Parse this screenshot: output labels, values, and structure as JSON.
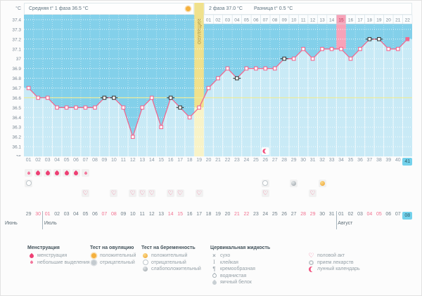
{
  "header": {
    "phase1": "Средняя t° 1 фаза 36.5 °C",
    "phase2": "2 фаза 37.0 °C",
    "difference": "Разница t° 0.5 °C",
    "ovulation": "ОВУЛЯЦИЯ"
  },
  "colors": {
    "chart_bg": "#83d0ea",
    "area_fill": "#c9eaf6",
    "line": "#f2688f",
    "marker_dark": "#3c3c3c",
    "coverline": "#ecec9e",
    "band_top": "#f0e18c",
    "band_bottom": "#f8f3c8",
    "band_text": "#9d8836",
    "highlight_pink": "#f8a2b8",
    "highlight_pink_text": "#b23a55",
    "cell_text": "#7c8b95",
    "axis_text": "#7a8894",
    "today_blue": "#74d2ec"
  },
  "chart_data": {
    "type": "line",
    "title": "Basal body temperature cycle chart",
    "ylabel": "°C",
    "ylim": [
      36.0,
      37.45
    ],
    "ytick_labels": [
      "37.4",
      "37.3",
      "37.2",
      "37.1",
      "37",
      "36.9",
      "36.8",
      "36.7",
      "36.6",
      "36.5",
      "36.4",
      "36.3",
      "36.2",
      "36.1",
      "36"
    ],
    "coverline": 36.6,
    "cycle_length": 41,
    "ovulation_cycle_day": 19,
    "phase2_days": 22,
    "phase2_highlight_day": 15,
    "today_cycle_day": 41,
    "temperatures": [
      36.7,
      36.6,
      36.6,
      36.5,
      36.5,
      36.5,
      36.5,
      36.5,
      36.6,
      36.6,
      36.5,
      36.2,
      36.5,
      36.6,
      36.3,
      36.6,
      36.5,
      36.4,
      36.5,
      36.7,
      36.8,
      36.9,
      36.8,
      36.9,
      36.9,
      36.9,
      36.9,
      37.0,
      37.0,
      37.1,
      37.0,
      37.1,
      37.1,
      37.1,
      37.0,
      37.1,
      37.2,
      37.2,
      37.1,
      37.1,
      37.2
    ],
    "dark_marker_days": [
      9,
      10,
      16,
      17,
      23,
      28,
      37,
      38
    ],
    "filled_marker_days": [
      41
    ]
  },
  "tracking_rows": {
    "menstruation_heavy_days": [
      2,
      3,
      4,
      5,
      6
    ],
    "menstruation_light_days": [
      1,
      7
    ],
    "pregnancy_tests": [
      {
        "day": 1,
        "result": "negative"
      },
      {
        "day": 26,
        "result": "negative"
      },
      {
        "day": 29,
        "result": "weak_positive"
      },
      {
        "day": 32,
        "result": "positive"
      }
    ],
    "intercourse_days": [
      7,
      10,
      12,
      13,
      14,
      16,
      17,
      19,
      26,
      31
    ],
    "lunar_days": [
      26
    ]
  },
  "calendar": {
    "months": [
      {
        "name": "Июнь",
        "days": [
          29,
          30
        ],
        "weekends": [
          30
        ]
      },
      {
        "name": "Июль",
        "days": [
          1,
          2,
          3,
          4,
          5,
          6,
          7,
          8,
          9,
          10,
          11,
          12,
          13,
          14,
          15,
          16,
          17,
          18,
          19,
          20,
          21,
          22,
          23,
          24,
          25,
          26,
          27,
          28,
          29,
          30,
          31
        ],
        "weekends": [
          1,
          7,
          8,
          14,
          15,
          21,
          22,
          28,
          29
        ]
      },
      {
        "name": "Август",
        "days": [
          1,
          2,
          3,
          4,
          5,
          6,
          7,
          8
        ],
        "weekends": [
          4,
          5
        ],
        "today": 8
      }
    ]
  },
  "legend": {
    "columns": [
      {
        "title": "Менструация",
        "items": [
          {
            "icon": "drop-large",
            "label": "менструация"
          },
          {
            "icon": "drop-small",
            "label": "небольшие выделения"
          }
        ]
      },
      {
        "title": "Тест на овуляцию",
        "items": [
          {
            "icon": "sun-orange",
            "label": "положительный"
          },
          {
            "icon": "sun-gray",
            "label": "отрицательный"
          }
        ]
      },
      {
        "title": "Тест на беременность",
        "items": [
          {
            "icon": "ball-gold",
            "label": "положительный"
          },
          {
            "icon": "ring",
            "label": "отрицательный"
          },
          {
            "icon": "ball-gray",
            "label": "слабоположительный"
          }
        ]
      },
      {
        "title": "Цервикальная жидкость",
        "items": [
          {
            "icon": "cross",
            "label": "сухо"
          },
          {
            "icon": "sticky",
            "label": "клейкая"
          },
          {
            "icon": "creamy",
            "label": "кремообразная"
          },
          {
            "icon": "watery",
            "label": "водянистая"
          },
          {
            "icon": "eggwhite",
            "label": "яичный белок"
          }
        ]
      },
      {
        "title": "",
        "items": [
          {
            "icon": "heart",
            "label": "половой акт"
          },
          {
            "icon": "pill",
            "label": "прием лекарств"
          },
          {
            "icon": "moon",
            "label": "лунный календарь"
          }
        ]
      }
    ]
  }
}
